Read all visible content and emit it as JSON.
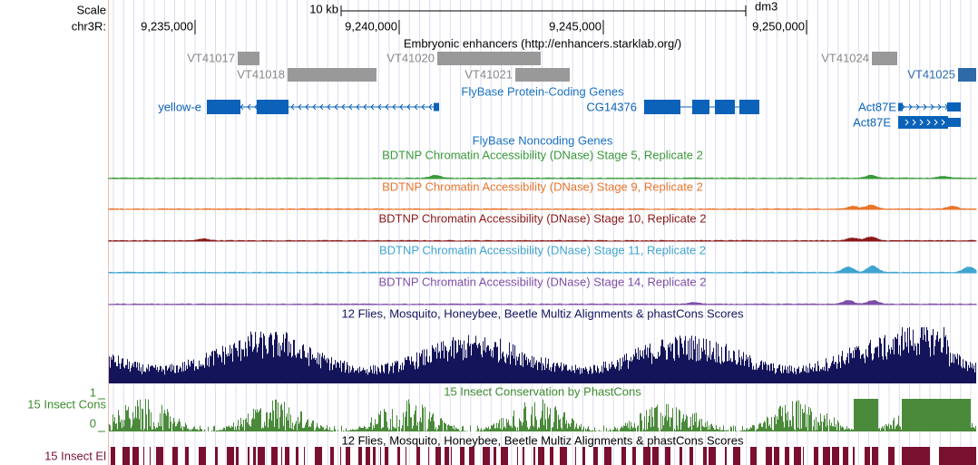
{
  "ruler": {
    "scale_label": "Scale",
    "scale_bar": "10 kb",
    "assembly": "dm3",
    "chrom_label": "chr3R:",
    "ticks": [
      "9,235,000",
      "9,240,000",
      "9,245,000",
      "9,250,000"
    ]
  },
  "enhancers": {
    "title": "Embryonic enhancers (http://enhancers.starklab.org/)",
    "features": [
      "VT41017",
      "VT41018",
      "VT41020",
      "VT41021",
      "VT41024",
      "VT41025"
    ]
  },
  "protein_genes": {
    "title": "FlyBase Protein-Coding Genes",
    "features": [
      "yellow-e",
      "CG14376",
      "Act87E",
      "Act87E"
    ]
  },
  "noncoding_genes": {
    "title": "FlyBase Noncoding Genes"
  },
  "dnase_tracks": [
    "BDTNP Chromatin Accessibility (DNase) Stage 5, Replicate 2",
    "BDTNP Chromatin Accessibility (DNase) Stage 9, Replicate 2",
    "BDTNP Chromatin Accessibility (DNase) Stage 10, Replicate 2",
    "BDTNP Chromatin Accessibility (DNase) Stage 11, Replicate 2",
    "BDTNP Chromatin Accessibility (DNase) Stage 14, Replicate 2"
  ],
  "multiz": {
    "title": "12 Flies, Mosquito, Honeybee, Beetle Multiz Alignments & phastCons Scores"
  },
  "cons": {
    "left_label": "15 Insect Cons",
    "title": "15 Insect Conservation by PhastCons",
    "max_label": "1",
    "min_label": "0"
  },
  "elements": {
    "left_label": "15 Insect El",
    "title": "12 Flies, Mosquito, Honeybee, Beetle Multiz Alignments & phastCons Scores"
  }
}
